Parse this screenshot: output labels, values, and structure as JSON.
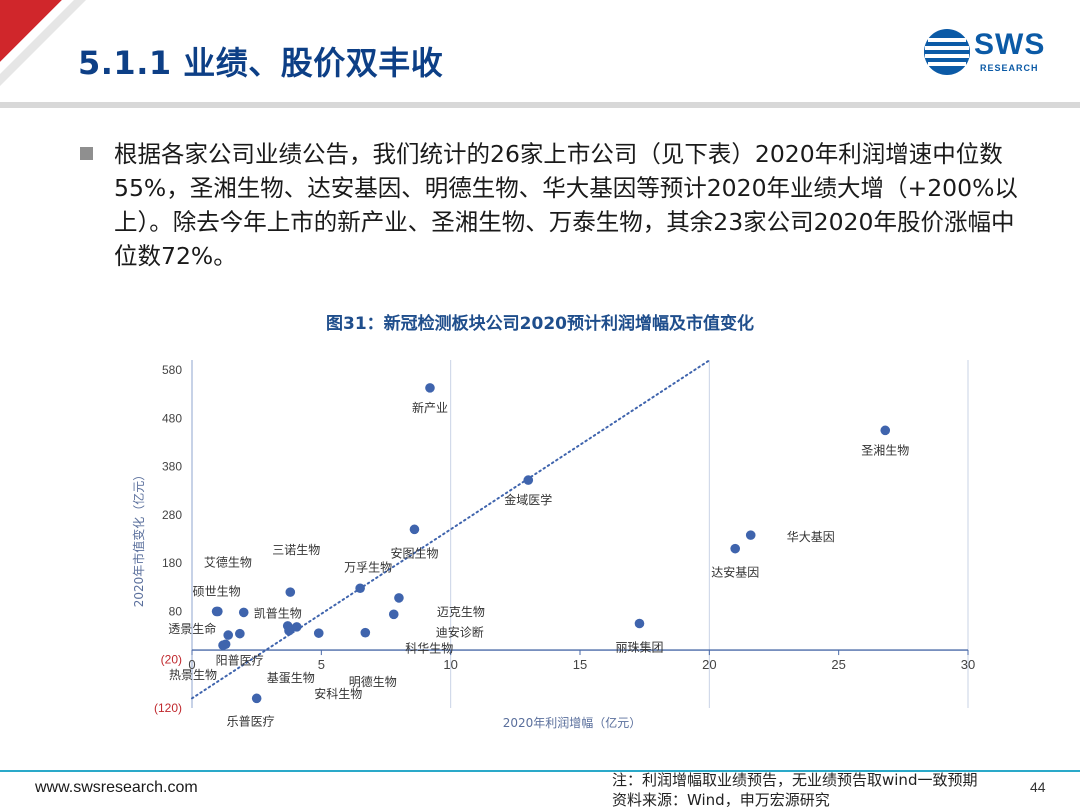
{
  "slide": {
    "title": "5.1.1 业绩、股价双丰收",
    "bullet": "根据各家公司业绩公告，我们统计的26家上市公司（见下表）2020年利润增速中位数55%，圣湘生物、达安基因、明德生物、华大基因等预计2020年业绩大增（+200%以上）。除去今年上市的新产业、圣湘生物、万泰生物，其余23家公司2020年股价涨幅中位数72%。",
    "figure_title": "图31：新冠检测板块公司2020预计利润增幅及市值变化"
  },
  "logo": {
    "text": "SWS",
    "sub": "RESEARCH",
    "color": "#0b5aa6"
  },
  "footer": {
    "url": "www.swsresearch.com",
    "note_line1": "注：利润增幅取业绩预告，无业绩预告取wind一致预期",
    "note_line2": "资料来源：Wind，申万宏源研究",
    "page": "44"
  },
  "colors": {
    "accent_red": "#d0262b",
    "title_blue": "#0d3f86",
    "point": "#3f64ad",
    "axis": "#8fa6cf",
    "label": "#333333"
  },
  "chart_data": {
    "type": "scatter",
    "xlabel": "2020年利润增幅（亿元）",
    "ylabel": "2020年市值变化（亿元）",
    "xlim": [
      0,
      30
    ],
    "ylim": [
      -120,
      580
    ],
    "x_ticks": [
      "0",
      "5",
      "10",
      "15",
      "20",
      "25",
      "30"
    ],
    "y_ticks": [
      "580",
      "480",
      "380",
      "280",
      "180",
      "80",
      "(20)",
      "(120)"
    ],
    "y_tick_values": [
      580,
      480,
      380,
      280,
      180,
      80,
      -20,
      -120
    ],
    "x_tick_values": [
      0,
      5,
      10,
      15,
      20,
      25,
      30
    ],
    "trendline": {
      "style": "dotted",
      "from": [
        0,
        -100
      ],
      "to": [
        20,
        600
      ]
    },
    "points": [
      {
        "name": "新产业",
        "x": 9.2,
        "y": 543
      },
      {
        "name": "圣湘生物",
        "x": 26.8,
        "y": 455
      },
      {
        "name": "金域医学",
        "x": 13.0,
        "y": 352
      },
      {
        "name": "安图生物",
        "x": 8.6,
        "y": 250
      },
      {
        "name": "华大基因",
        "x": 21.6,
        "y": 238
      },
      {
        "name": "达安基因",
        "x": 21.0,
        "y": 210
      },
      {
        "name": "三诺生物",
        "x": 3.8,
        "y": 120
      },
      {
        "name": "万孚生物",
        "x": 6.5,
        "y": 128
      },
      {
        "name": "迈克生物",
        "x": 8.0,
        "y": 108
      },
      {
        "name": "艾德生物",
        "x": 1.0,
        "y": 80
      },
      {
        "name": "凯普生物",
        "x": 2.0,
        "y": 78
      },
      {
        "name": "迪安诊断",
        "x": 7.8,
        "y": 74
      },
      {
        "name": "硕世生物",
        "x": 0.95,
        "y": 80
      },
      {
        "name": "丽珠集团",
        "x": 17.3,
        "y": 55
      },
      {
        "name": "透景生命",
        "x": 1.4,
        "y": 31
      },
      {
        "name": "阳普医疗",
        "x": 1.3,
        "y": 12
      },
      {
        "name": "热景生物",
        "x": 1.2,
        "y": 10
      },
      {
        "name": "明德生物",
        "x": 4.9,
        "y": 35
      },
      {
        "name": "科华生物",
        "x": 6.7,
        "y": 36
      },
      {
        "name": "基蛋生物",
        "x": 3.7,
        "y": 50
      },
      {
        "name": "安科生物",
        "x": 3.8,
        "y": 44
      },
      {
        "name": "乐普医疗",
        "x": 2.5,
        "y": -100
      },
      {
        "name": "",
        "x": 1.85,
        "y": 34
      },
      {
        "name": "",
        "x": 4.05,
        "y": 48
      },
      {
        "name": "",
        "x": 3.75,
        "y": 40
      }
    ]
  }
}
